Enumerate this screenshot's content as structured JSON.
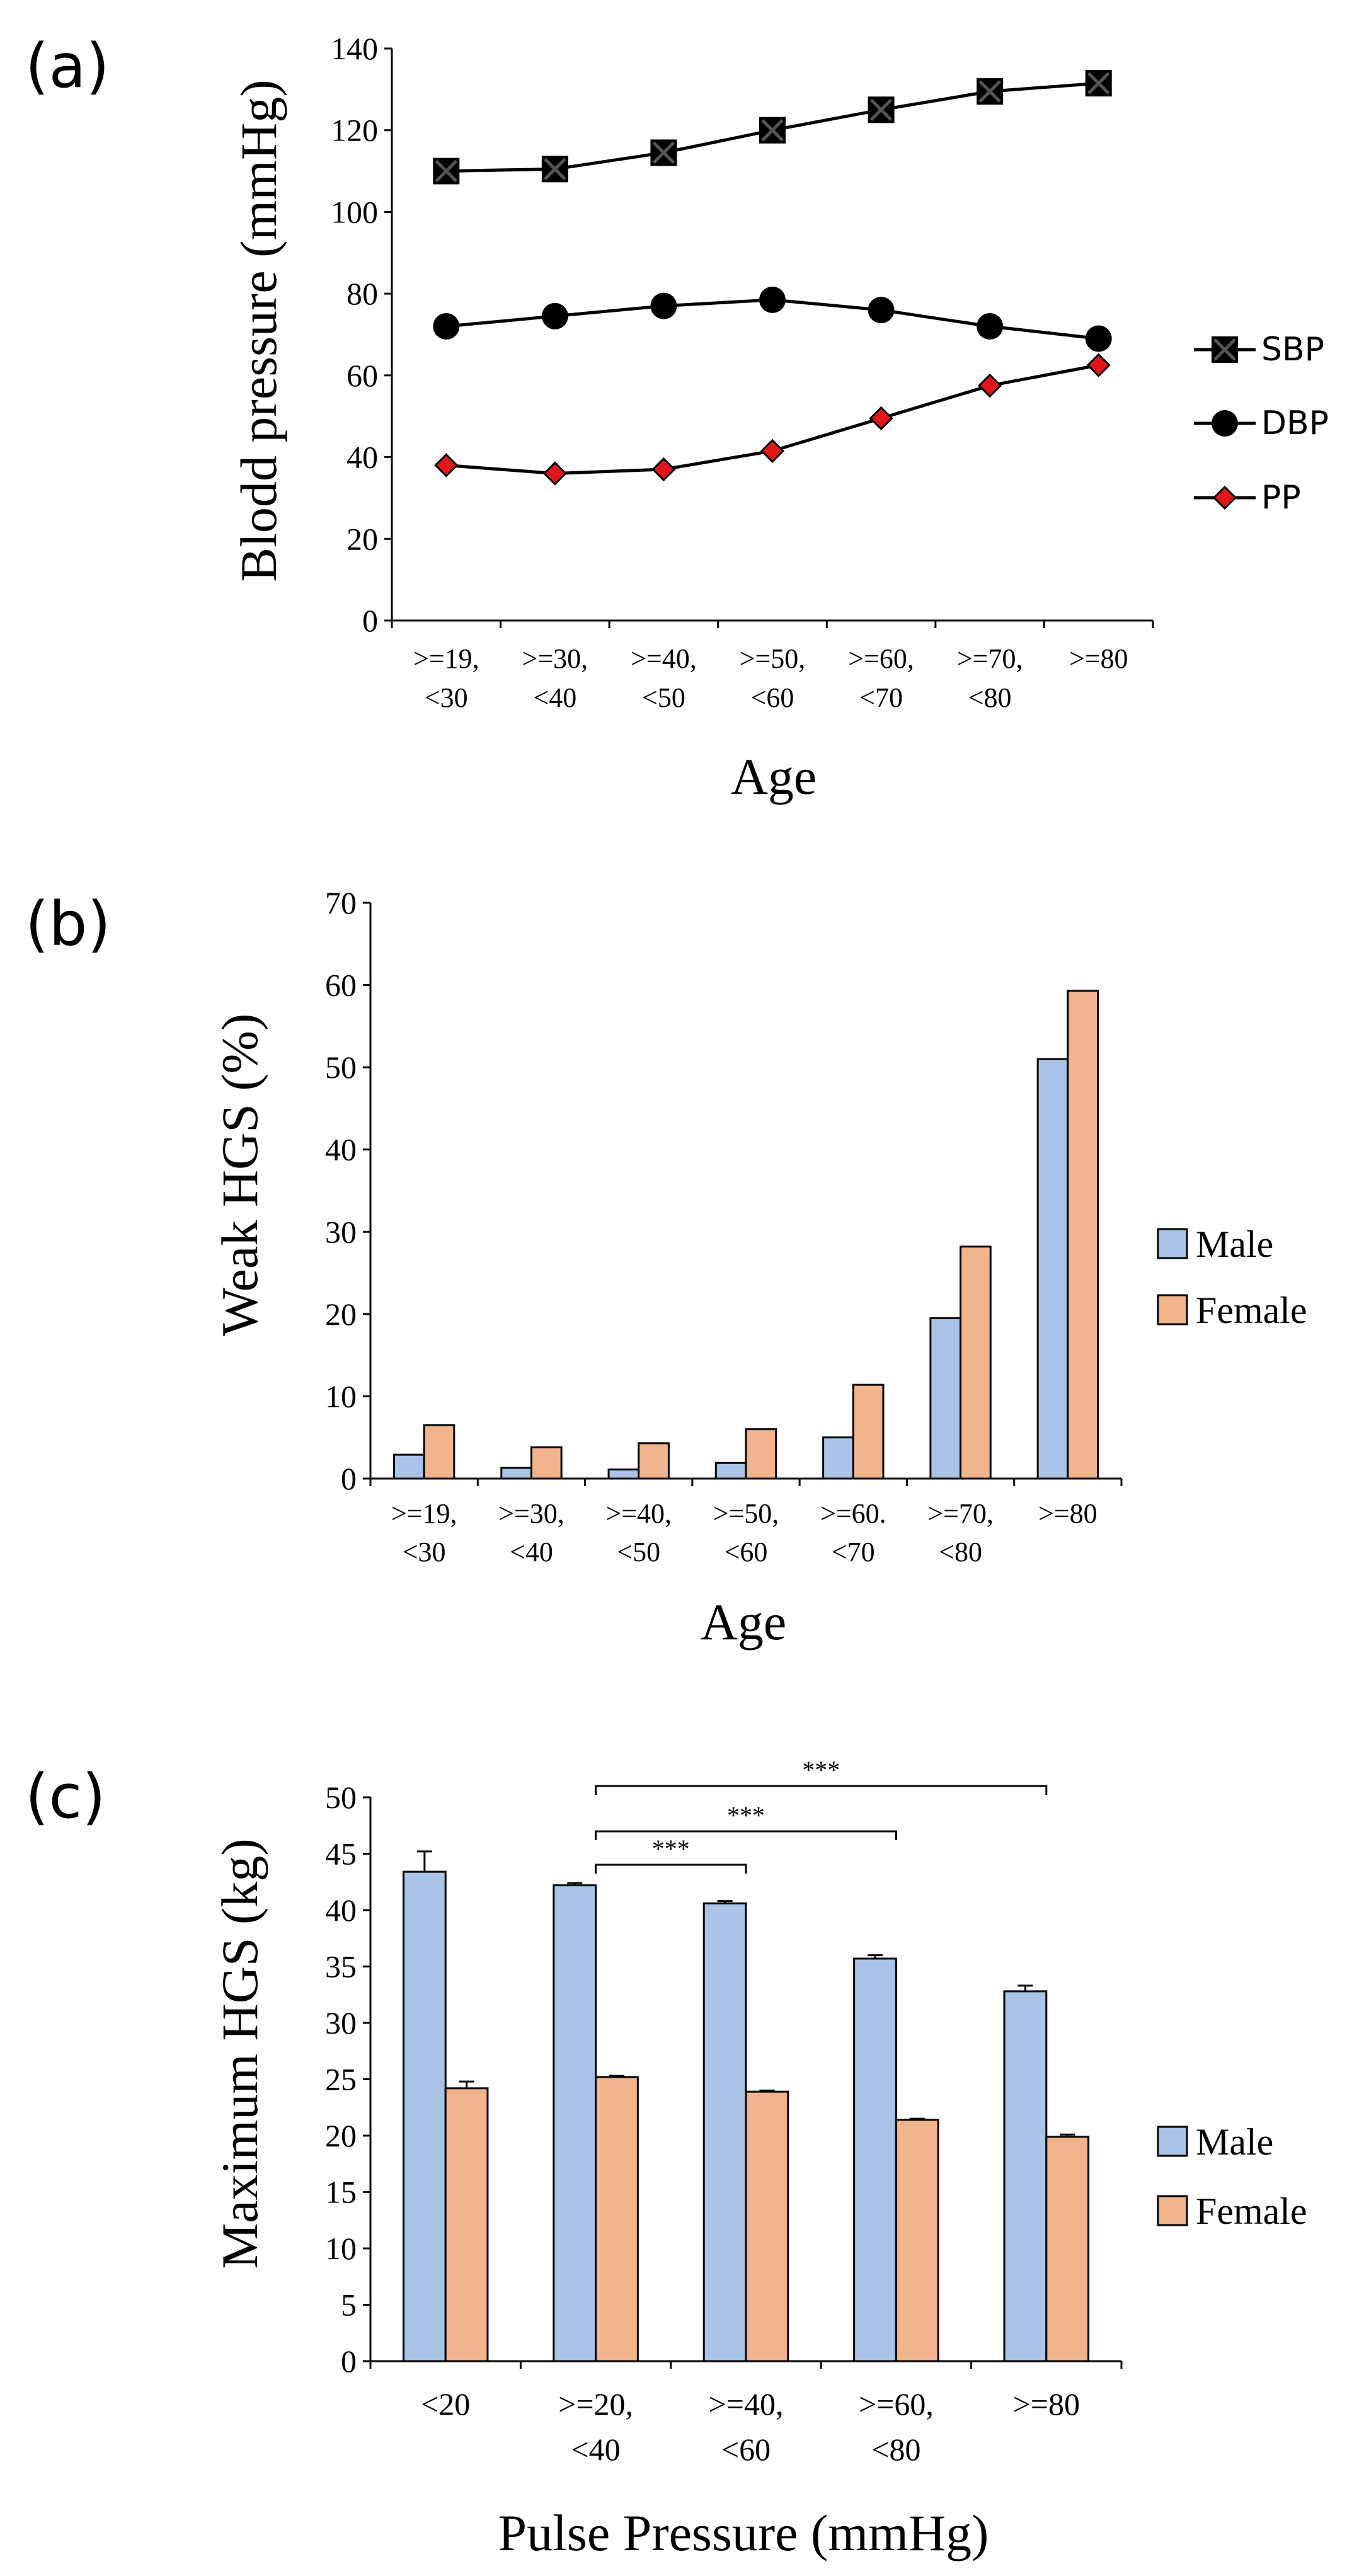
{
  "colors": {
    "male": "#a9c4e6",
    "female": "#f2b48c",
    "pp_marker": "#e0161b",
    "axis": "#000000"
  },
  "chart_data": [
    {
      "panel": "(a)",
      "type": "line",
      "title": "",
      "xlabel": "Age",
      "ylabel": "Blodd pressure (mmHg)",
      "ylim": [
        0,
        140
      ],
      "yticks": [
        0,
        20,
        40,
        60,
        80,
        100,
        120,
        140
      ],
      "categories": [
        [
          ">=19,",
          "<30"
        ],
        [
          ">=30,",
          "<40"
        ],
        [
          ">=40,",
          "<50"
        ],
        [
          ">=50,",
          "<60"
        ],
        [
          ">=60,",
          "<70"
        ],
        [
          ">=70,",
          "<80"
        ],
        [
          ">=80"
        ]
      ],
      "series": [
        {
          "name": "SBP",
          "marker": "square-x",
          "values": [
            110,
            110.5,
            114.5,
            120,
            125,
            129.5,
            131.5
          ]
        },
        {
          "name": "DBP",
          "marker": "circle",
          "values": [
            72,
            74.5,
            77,
            78.5,
            76,
            72,
            69
          ]
        },
        {
          "name": "PP",
          "marker": "diamond",
          "values": [
            38,
            36,
            37,
            41.5,
            49.5,
            57.5,
            62.5
          ]
        }
      ],
      "legend_position": "right"
    },
    {
      "panel": "(b)",
      "type": "bar",
      "title": "",
      "xlabel": "Age",
      "ylabel": "Weak HGS (%)",
      "ylim": [
        0,
        70
      ],
      "yticks": [
        0,
        10,
        20,
        30,
        40,
        50,
        60,
        70
      ],
      "categories": [
        [
          ">=19,",
          "<30"
        ],
        [
          ">=30,",
          "<40"
        ],
        [
          ">=40,",
          "<50"
        ],
        [
          ">=50,",
          "<60"
        ],
        [
          ">=60.",
          "<70"
        ],
        [
          ">=70,",
          "<80"
        ],
        [
          ">=80"
        ]
      ],
      "series": [
        {
          "name": "Male",
          "values": [
            2.9,
            1.3,
            1.1,
            1.9,
            5.0,
            19.5,
            51.0
          ]
        },
        {
          "name": "Female",
          "values": [
            6.5,
            3.8,
            4.3,
            6.0,
            11.4,
            28.2,
            59.3
          ]
        }
      ],
      "legend_position": "right"
    },
    {
      "panel": "(c)",
      "type": "bar",
      "title": "",
      "xlabel": "Pulse Pressure (mmHg)",
      "ylabel": "Maximum HGS (kg)",
      "ylim": [
        0,
        50
      ],
      "yticks": [
        0,
        5,
        10,
        15,
        20,
        25,
        30,
        35,
        40,
        45,
        50
      ],
      "categories": [
        [
          "<20"
        ],
        [
          ">=20,",
          "<40"
        ],
        [
          ">=40,",
          "<60"
        ],
        [
          ">=60,",
          "<80"
        ],
        [
          ">=80"
        ]
      ],
      "series": [
        {
          "name": "Male",
          "values": [
            43.4,
            42.2,
            40.6,
            35.7,
            32.8
          ],
          "errors": [
            1.8,
            0.2,
            0.2,
            0.3,
            0.5
          ]
        },
        {
          "name": "Female",
          "values": [
            24.2,
            25.2,
            23.9,
            21.4,
            19.9
          ],
          "errors": [
            0.6,
            0.1,
            0.1,
            0.1,
            0.2
          ]
        }
      ],
      "significance": [
        {
          "from": 1,
          "to": 2,
          "label": "***"
        },
        {
          "from": 1,
          "to": 3,
          "label": "***"
        },
        {
          "from": 1,
          "to": 4,
          "label": "***"
        }
      ],
      "legend_position": "right"
    }
  ]
}
